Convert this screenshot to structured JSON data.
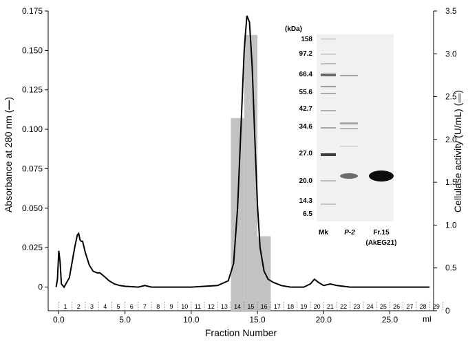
{
  "chart_data": {
    "type": "line",
    "title": "",
    "xlabel": "Fraction Number",
    "x_unit": "ml",
    "ylabel_left": "Absorbance at 280 nm (",
    "ylabel_left_close": ")",
    "ylabel_right": "Cellulase activity (U/mL) (",
    "ylabel_right_close": ")",
    "xlim": [
      -0.8,
      28.3
    ],
    "ylim_left": [
      -0.015,
      0.175
    ],
    "ylim_right": [
      0,
      3.5
    ],
    "x_ticks": [
      "0.0",
      "5.0",
      "10.0",
      "15.0",
      "20.0",
      "25.0"
    ],
    "y_left_ticks": [
      "0",
      "0.025",
      "0.050",
      "0.075",
      "0.100",
      "0.125",
      "0.150",
      "0.175"
    ],
    "y_right_ticks": [
      "0",
      "0.5",
      "1.0",
      "1.5",
      "2.0",
      "2.5",
      "3.0",
      "3.5"
    ],
    "fractions": [
      "1",
      "2",
      "3",
      "4",
      "5",
      "6",
      "7",
      "8",
      "9",
      "10",
      "11",
      "12",
      "13",
      "14",
      "15",
      "16",
      "17",
      "18",
      "19",
      "20",
      "21",
      "22",
      "23",
      "24",
      "25",
      "26",
      "27",
      "28",
      "29"
    ],
    "series": [
      {
        "kind": "line",
        "x": [
          -0.2,
          -0.1,
          0.0,
          0.1,
          0.2,
          0.4,
          0.8,
          1.2,
          1.4,
          1.5,
          1.6,
          1.7,
          1.8,
          2.0,
          2.3,
          2.6,
          2.9,
          3.1,
          3.4,
          3.8,
          4.2,
          4.6,
          5.0,
          6.0,
          6.5,
          7.0,
          8.0,
          10.0,
          12.0,
          12.8,
          13.2,
          13.5,
          13.8,
          14.0,
          14.2,
          14.4,
          14.6,
          14.8,
          15.0,
          15.2,
          15.5,
          15.8,
          16.2,
          16.8,
          17.5,
          18.5,
          19.0,
          19.3,
          19.6,
          20.0,
          20.5,
          21.0,
          22.0,
          24.0,
          28.0
        ],
        "y": [
          0.0,
          0.005,
          0.023,
          0.016,
          0.002,
          0.0,
          0.006,
          0.025,
          0.033,
          0.034,
          0.03,
          0.029,
          0.029,
          0.022,
          0.014,
          0.01,
          0.009,
          0.009,
          0.007,
          0.004,
          0.002,
          0.001,
          0.0005,
          0.0,
          0.001,
          0.0,
          0.0,
          0.0,
          0.001,
          0.004,
          0.015,
          0.05,
          0.11,
          0.15,
          0.172,
          0.168,
          0.14,
          0.095,
          0.052,
          0.025,
          0.01,
          0.005,
          0.003,
          0.001,
          0.0,
          0.0,
          0.002,
          0.005,
          0.003,
          0.001,
          0.002,
          0.001,
          0.0,
          0.0,
          0.0
        ]
      },
      {
        "kind": "bar",
        "x": [
          13.5,
          14.5,
          15.5
        ],
        "y": [
          2.25,
          3.22,
          0.87
        ]
      }
    ],
    "colors": {
      "line": "#000000",
      "bar": "#c2c2c2"
    }
  },
  "inset": {
    "unit_label": "(kDa)",
    "markers": [
      "158",
      "97.2",
      "66.4",
      "55.6",
      "42.7",
      "34.6",
      "27.0",
      "20.0",
      "14.3",
      "6.5"
    ],
    "lanes": [
      "Mk",
      "P-2",
      "Fr.15"
    ],
    "lane_sub": "(AkEG21)"
  }
}
